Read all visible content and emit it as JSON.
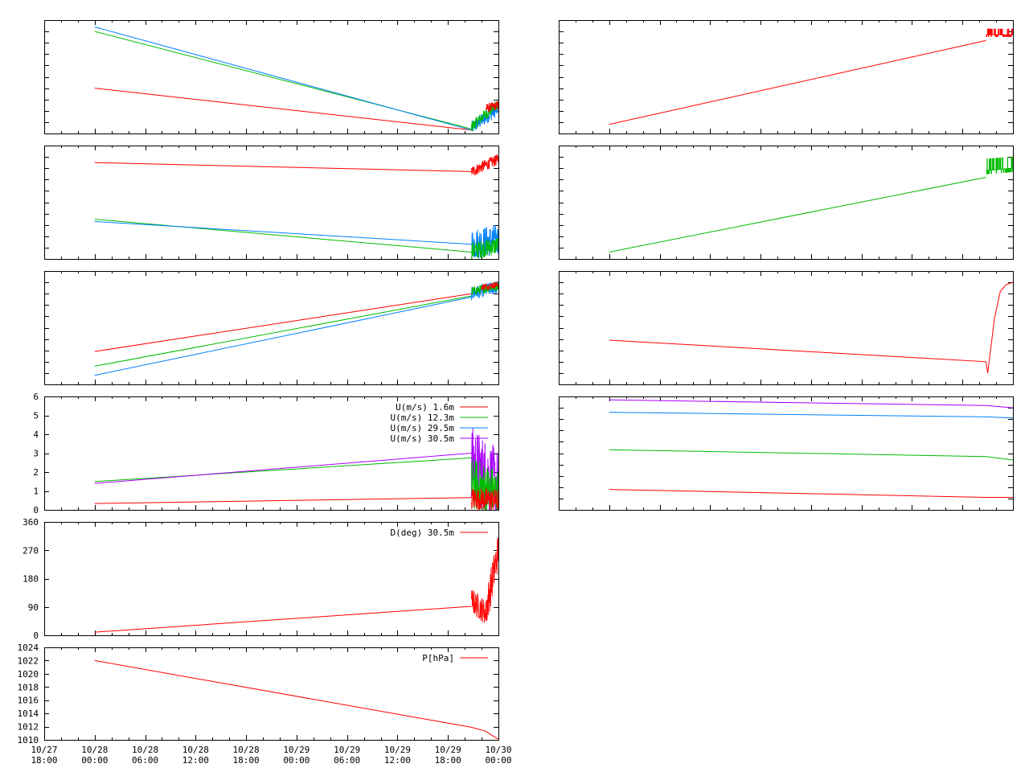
{
  "x_ticks": [
    [
      "10/27",
      "18:00"
    ],
    [
      "10/28",
      "00:00"
    ],
    [
      "10/28",
      "06:00"
    ],
    [
      "10/28",
      "12:00"
    ],
    [
      "10/28",
      "18:00"
    ],
    [
      "10/29",
      "00:00"
    ],
    [
      "10/29",
      "06:00"
    ],
    [
      "10/29",
      "12:00"
    ],
    [
      "10/29",
      "18:00"
    ],
    [
      "10/30",
      "00:00"
    ]
  ],
  "colors": {
    "red": "#ff0000",
    "green": "#00bb00",
    "blue": "#0080ff",
    "purple": "#aa00ff",
    "frame": "#000000"
  },
  "chart_data": [
    {
      "id": "left-1",
      "type": "line",
      "xlim": [
        0,
        54
      ],
      "ylim": [
        0,
        100
      ],
      "series": [
        {
          "color": "red",
          "x": [
            6,
            50.8
          ],
          "y": [
            40,
            3
          ]
        },
        {
          "color": "green",
          "x": [
            6,
            50.8
          ],
          "y": [
            90,
            4
          ]
        },
        {
          "color": "blue",
          "x": [
            6,
            50.8
          ],
          "y": [
            94,
            3
          ]
        }
      ],
      "bursts": [
        {
          "color": "blue",
          "x0": 50.8,
          "x1": 54,
          "start": 5,
          "end": 22,
          "amp": 6
        },
        {
          "color": "green",
          "x0": 50.8,
          "x1": 54,
          "start": 6,
          "end": 27,
          "amp": 5
        },
        {
          "color": "red",
          "x0": 52.5,
          "x1": 54,
          "start": 22,
          "end": 25,
          "amp": 4
        }
      ]
    },
    {
      "id": "left-2",
      "type": "line",
      "xlim": [
        0,
        54
      ],
      "ylim": [
        0,
        100
      ],
      "series": [
        {
          "color": "red",
          "x": [
            6,
            50.8
          ],
          "y": [
            85,
            77
          ]
        },
        {
          "color": "green",
          "x": [
            6,
            50.8
          ],
          "y": [
            35,
            6
          ]
        },
        {
          "color": "blue",
          "x": [
            6,
            50.8
          ],
          "y": [
            33,
            13
          ]
        }
      ],
      "bursts": [
        {
          "color": "red",
          "x0": 50.8,
          "x1": 54,
          "start": 77,
          "end": 88,
          "amp": 5
        },
        {
          "color": "blue",
          "x0": 50.8,
          "x1": 54,
          "start": 13,
          "end": 17,
          "amp": 14
        },
        {
          "color": "green",
          "x0": 50.8,
          "x1": 54,
          "start": 7,
          "end": 12,
          "amp": 8
        }
      ]
    },
    {
      "id": "left-3",
      "type": "line",
      "xlim": [
        0,
        54
      ],
      "ylim": [
        0,
        100
      ],
      "series": [
        {
          "color": "red",
          "x": [
            6,
            50.8
          ],
          "y": [
            29,
            80
          ]
        },
        {
          "color": "green",
          "x": [
            6,
            50.8
          ],
          "y": [
            16,
            78
          ]
        },
        {
          "color": "blue",
          "x": [
            6,
            50.8
          ],
          "y": [
            8,
            77
          ]
        }
      ],
      "bursts": [
        {
          "color": "blue",
          "x0": 50.8,
          "x1": 54,
          "start": 80,
          "end": 86,
          "amp": 6
        },
        {
          "color": "green",
          "x0": 50.8,
          "x1": 54,
          "start": 82,
          "end": 87,
          "amp": 4
        },
        {
          "color": "red",
          "x0": 52,
          "x1": 54,
          "start": 86,
          "end": 88,
          "amp": 3
        }
      ]
    },
    {
      "id": "left-4",
      "type": "line",
      "xlim": [
        0,
        54
      ],
      "ylim": [
        0,
        6
      ],
      "yticks": [
        0,
        1,
        2,
        3,
        4,
        5,
        6
      ],
      "legend": "top-right",
      "series": [
        {
          "name": "U(m/s)  1.6m",
          "color": "red",
          "x": [
            6,
            50.8
          ],
          "y": [
            0.33,
            0.65
          ]
        },
        {
          "name": "U(m/s) 12.3m",
          "color": "green",
          "x": [
            6,
            50.8
          ],
          "y": [
            1.5,
            2.75
          ]
        },
        {
          "name": "U(m/s) 29.5m",
          "color": "blue",
          "x": [],
          "y": []
        },
        {
          "name": "U(m/s) 30.5m",
          "color": "purple",
          "x": [
            6,
            50.8
          ],
          "y": [
            1.4,
            3.0
          ]
        }
      ],
      "bursts": [
        {
          "color": "purple",
          "x0": 50.8,
          "x1": 54,
          "start": 2.5,
          "end": 1.2,
          "amp": 2.0
        },
        {
          "color": "green",
          "x0": 50.8,
          "x1": 54,
          "start": 1.4,
          "end": 0.8,
          "amp": 1.4
        },
        {
          "color": "red",
          "x0": 50.8,
          "x1": 54,
          "start": 0.6,
          "end": 0.5,
          "amp": 0.6
        }
      ]
    },
    {
      "id": "left-5",
      "type": "line",
      "xlim": [
        0,
        54
      ],
      "ylim": [
        0,
        360
      ],
      "yticks": [
        0,
        90,
        180,
        270,
        360
      ],
      "legend": "top-right",
      "series": [
        {
          "name": "D(deg)  30.5m",
          "color": "red",
          "x": [
            6,
            50.8
          ],
          "y": [
            10,
            92
          ]
        }
      ],
      "bursts": [
        {
          "color": "red",
          "x0": 50.8,
          "x1": 52.6,
          "start": 110,
          "end": 70,
          "amp": 40
        },
        {
          "color": "red",
          "x0": 52.6,
          "x1": 54,
          "start": 90,
          "end": 270,
          "amp": 60
        }
      ]
    },
    {
      "id": "left-6",
      "type": "line",
      "xlim": [
        0,
        54
      ],
      "ylim": [
        1010,
        1024
      ],
      "yticks": [
        1010,
        1012,
        1014,
        1016,
        1018,
        1020,
        1022,
        1024
      ],
      "legend": "top-right",
      "series": [
        {
          "name": "P[hPa]",
          "color": "red",
          "x": [
            6,
            50.8,
            52.5,
            53.2,
            54
          ],
          "y": [
            1022.0,
            1011.9,
            1011.3,
            1010.7,
            1010.1
          ]
        }
      ]
    },
    {
      "id": "right-1",
      "type": "line",
      "xlim": [
        0,
        54
      ],
      "ylim": [
        0,
        100
      ],
      "series": [
        {
          "color": "red",
          "x": [
            6,
            50.8
          ],
          "y": [
            8,
            82
          ]
        }
      ],
      "bursts": [
        {
          "color": "red",
          "x0": 50.8,
          "x1": 54,
          "start": 87,
          "end": 87,
          "amp": 5,
          "step": true
        }
      ]
    },
    {
      "id": "right-2",
      "type": "line",
      "xlim": [
        0,
        54
      ],
      "ylim": [
        0,
        100
      ],
      "series": [
        {
          "color": "green",
          "x": [
            6,
            50.8
          ],
          "y": [
            6,
            72
          ]
        }
      ],
      "bursts": [
        {
          "color": "green",
          "x0": 50.8,
          "x1": 54,
          "start": 78,
          "end": 80,
          "amp": 10,
          "step": true
        }
      ]
    },
    {
      "id": "right-3",
      "type": "line",
      "xlim": [
        0,
        54
      ],
      "ylim": [
        0,
        100
      ],
      "series": [
        {
          "color": "red",
          "x": [
            6,
            50.8,
            51.0,
            51.3,
            51.8,
            52.5,
            53.2,
            54
          ],
          "y": [
            39,
            20,
            10,
            28,
            58,
            82,
            88,
            90
          ]
        }
      ]
    },
    {
      "id": "right-4",
      "type": "line",
      "xlim": [
        0,
        54
      ],
      "ylim": [
        0,
        100
      ],
      "series": [
        {
          "color": "purple",
          "x": [
            6,
            50.8,
            54
          ],
          "y": [
            97,
            92,
            90
          ]
        },
        {
          "color": "blue",
          "x": [
            6,
            50.8,
            54
          ],
          "y": [
            86,
            82,
            81
          ]
        },
        {
          "color": "green",
          "x": [
            6,
            50.8,
            54
          ],
          "y": [
            53,
            47,
            44
          ]
        },
        {
          "color": "red",
          "x": [
            6,
            50.8,
            54
          ],
          "y": [
            18,
            11,
            11
          ]
        }
      ]
    }
  ]
}
